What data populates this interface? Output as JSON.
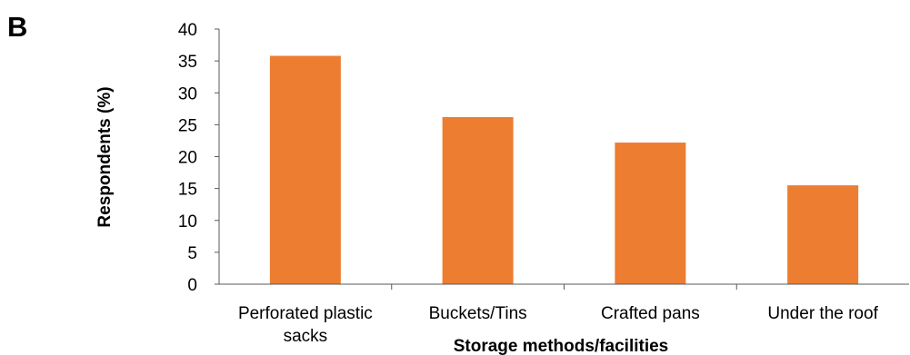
{
  "panel_letter": "B",
  "chart_data": {
    "type": "bar",
    "categories": [
      [
        "Perforated plastic",
        "sacks"
      ],
      [
        "Buckets/Tins"
      ],
      [
        "Crafted pans"
      ],
      [
        "Under the roof"
      ]
    ],
    "values": [
      35.8,
      26.2,
      22.2,
      15.5
    ],
    "title": "",
    "xlabel": "Storage methods/facilities",
    "ylabel": "Respondents (%)",
    "ylim": [
      0,
      40
    ],
    "yticks": [
      0,
      5,
      10,
      15,
      20,
      25,
      30,
      35,
      40
    ],
    "bar_color": "#ED7D31",
    "grid": false,
    "legend": "none"
  }
}
